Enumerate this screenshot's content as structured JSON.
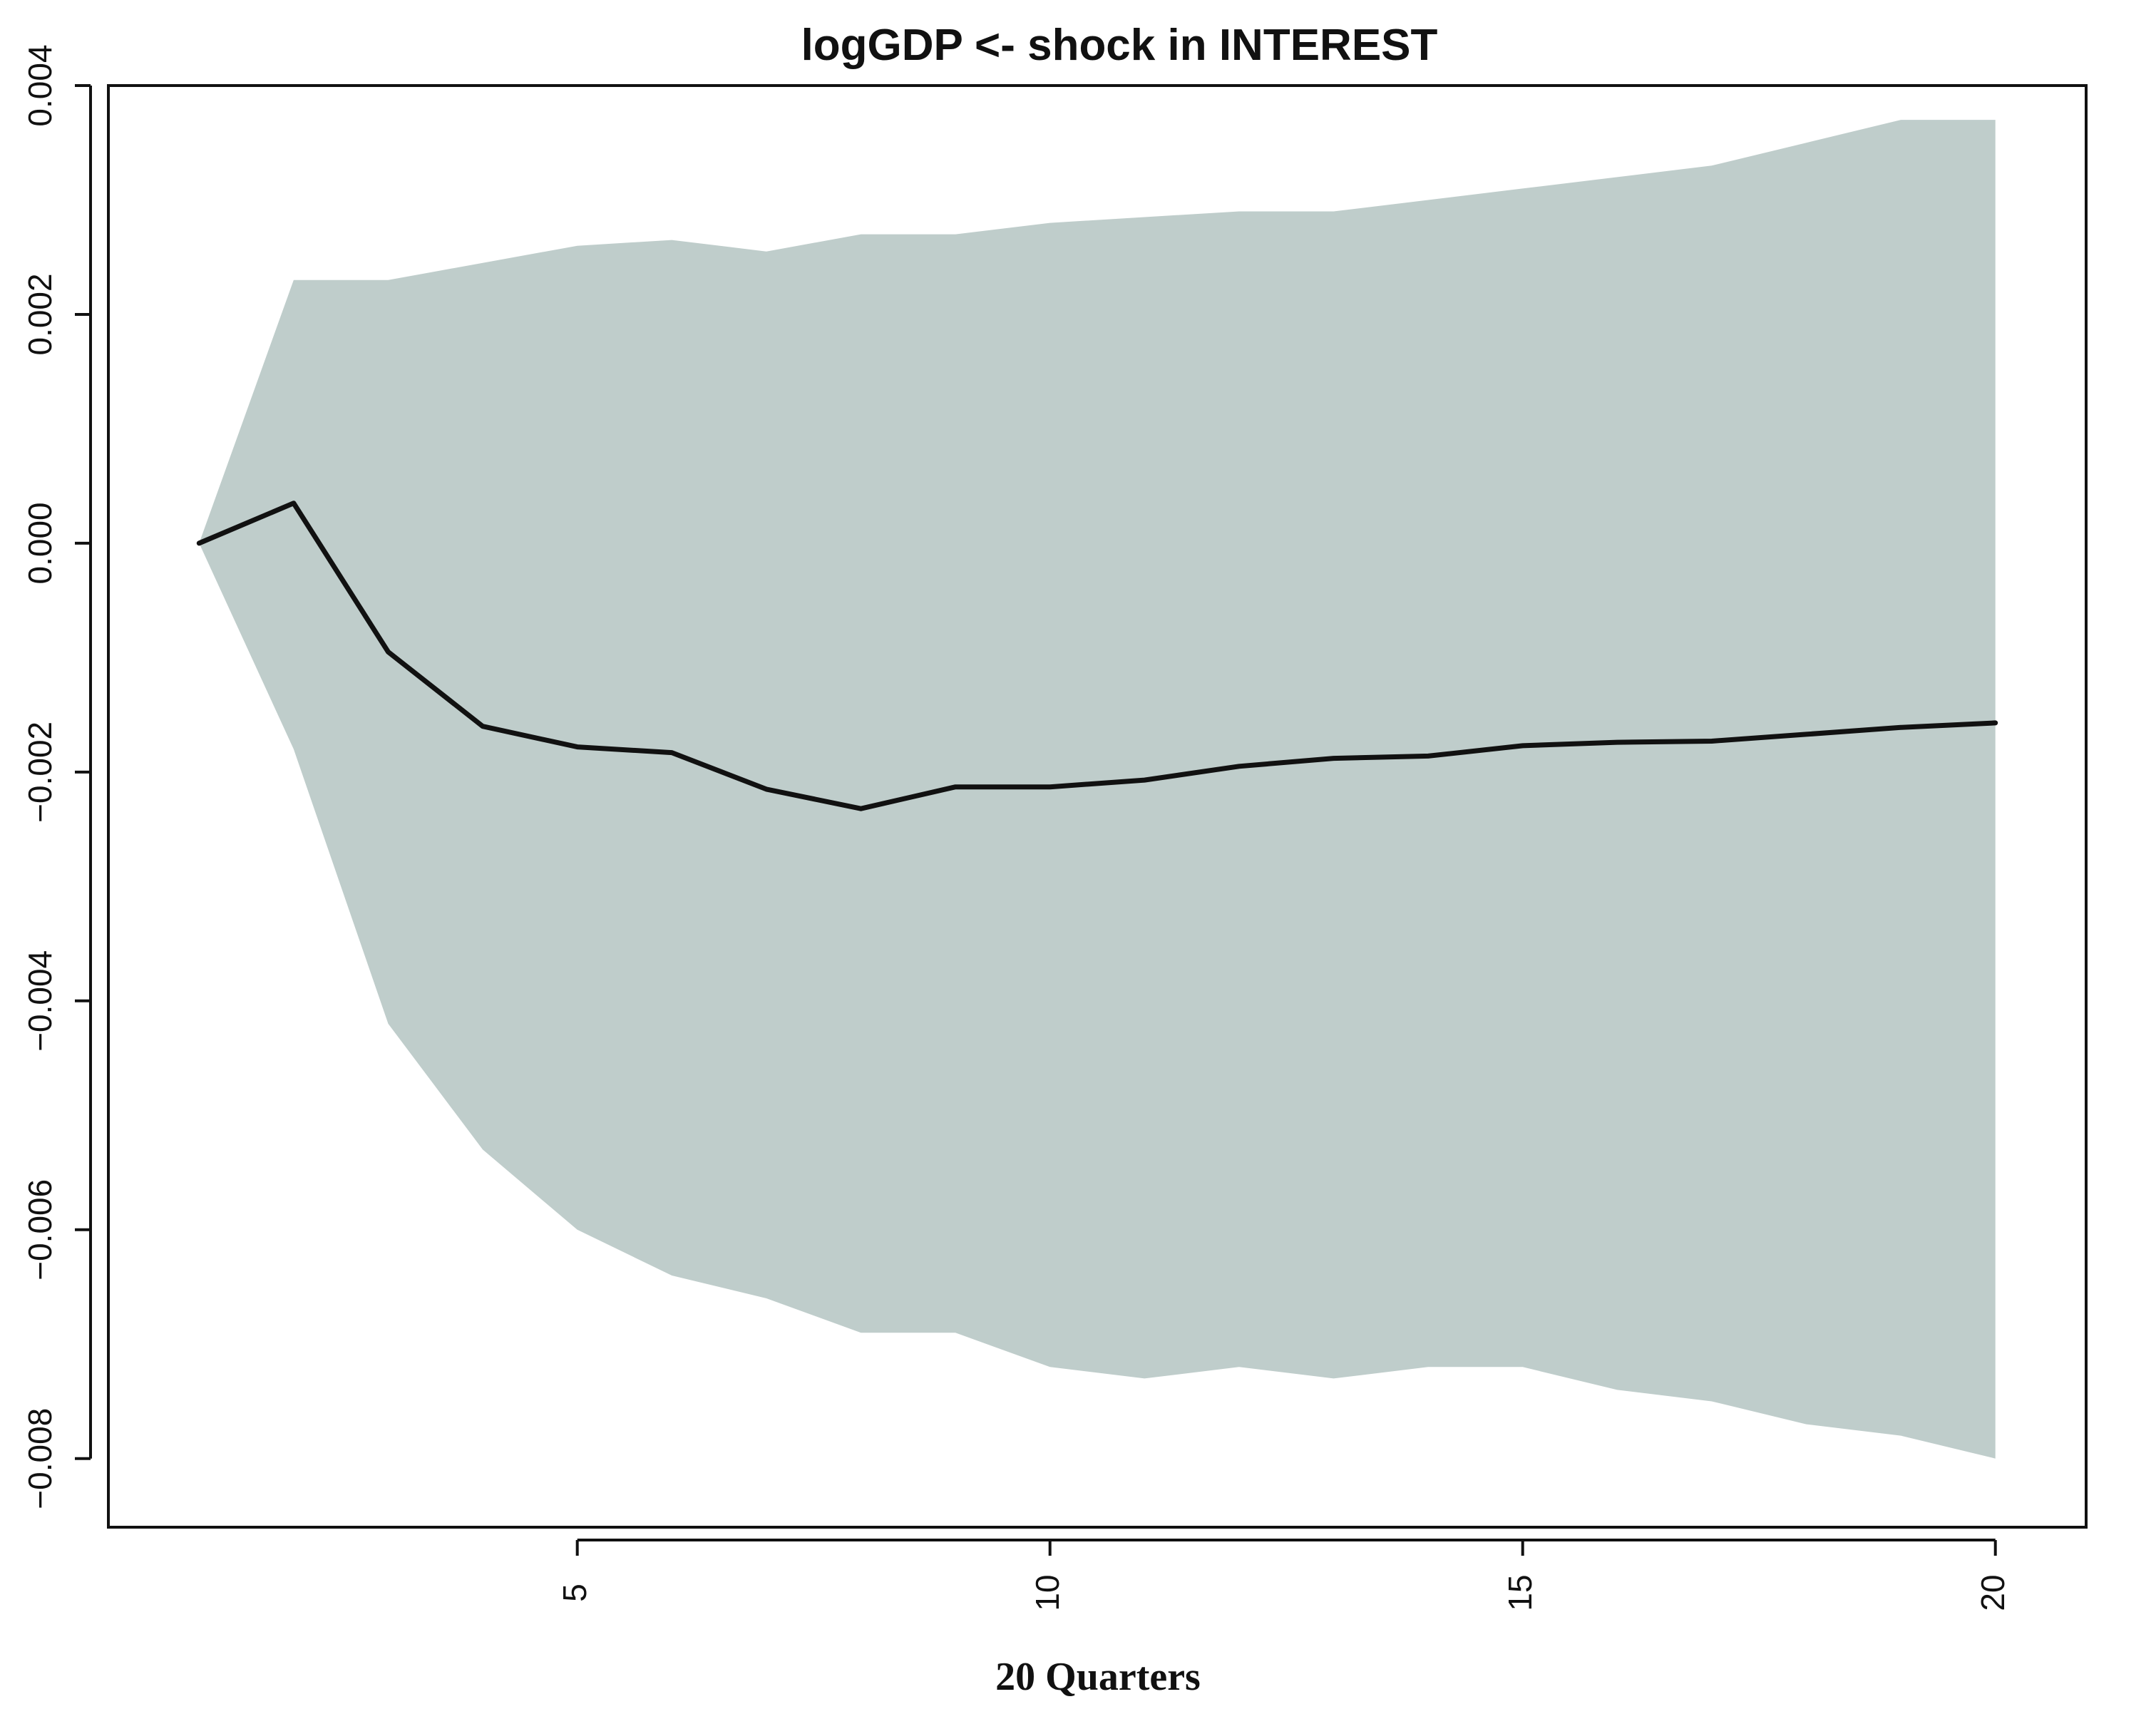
{
  "chart_data": {
    "type": "area",
    "title": "logGDP <- shock in INTEREST",
    "xlabel": "20 Quarters",
    "ylabel": "",
    "xlim": [
      0.04,
      20.96
    ],
    "ylim": [
      -0.0086,
      0.004
    ],
    "x_ticks": [
      5,
      10,
      15,
      20
    ],
    "x_tick_labels": [
      "5",
      "10",
      "15",
      "20"
    ],
    "y_ticks": [
      -0.008,
      -0.006,
      -0.004,
      -0.002,
      0.0,
      0.002,
      0.004
    ],
    "y_tick_labels": [
      "−0.008",
      "−0.006",
      "−0.004",
      "−0.002",
      "0.000",
      "0.002",
      "0.004"
    ],
    "grid": false,
    "colors": {
      "band": "#bfcdcb",
      "line": "#111111",
      "axis": "#111111"
    },
    "x": [
      1,
      2,
      3,
      4,
      5,
      6,
      7,
      8,
      9,
      10,
      11,
      12,
      13,
      14,
      15,
      16,
      17,
      18,
      19,
      20
    ],
    "series": [
      {
        "values": [
          0.0,
          0.00035,
          -0.00095,
          -0.0016,
          -0.00178,
          -0.00183,
          -0.00215,
          -0.00232,
          -0.00213,
          -0.00213,
          -0.00207,
          -0.00195,
          -0.00188,
          -0.00186,
          -0.00177,
          -0.00174,
          -0.00173,
          -0.00167,
          -0.00161,
          -0.00157
        ]
      }
    ],
    "band": {
      "upper": [
        0.0,
        0.0023,
        0.0023,
        0.00245,
        0.0026,
        0.00265,
        0.00255,
        0.0027,
        0.0027,
        0.0028,
        0.00285,
        0.0029,
        0.0029,
        0.003,
        0.0031,
        0.0032,
        0.0033,
        0.0035,
        0.0037,
        0.0037
      ],
      "lower": [
        0.0,
        -0.0018,
        -0.0042,
        -0.0053,
        -0.006,
        -0.0064,
        -0.0066,
        -0.0069,
        -0.0069,
        -0.0072,
        -0.0073,
        -0.0072,
        -0.0073,
        -0.0072,
        -0.0072,
        -0.0074,
        -0.0075,
        -0.0077,
        -0.0078,
        -0.008
      ]
    }
  }
}
